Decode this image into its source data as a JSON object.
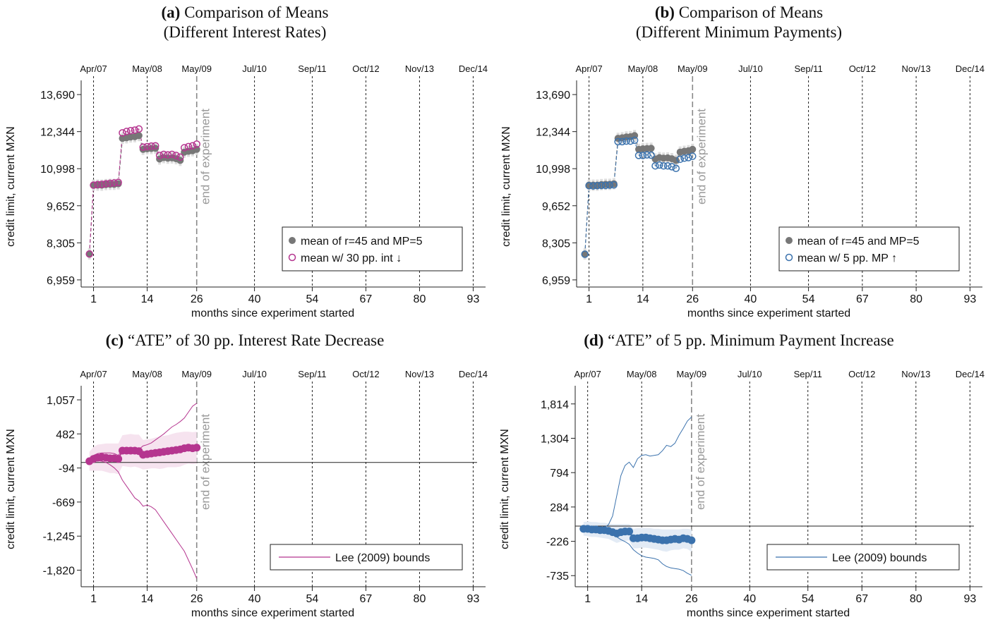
{
  "panels": [
    {
      "id": "a",
      "title": {
        "tag": "(a)",
        "line1": "Comparison of Means",
        "line2": "(Different Interest Rates)"
      },
      "chart_data": {
        "type": "scatter",
        "ylabel": "credit limit, current MXN",
        "xlabel": "months since experiment started",
        "x_ticks": [
          1,
          14,
          26,
          40,
          54,
          67,
          80,
          93
        ],
        "y_ticks": [
          6959,
          8305,
          9652,
          10998,
          12344,
          13690
        ],
        "y_tick_labels": [
          "6,959",
          "8,305",
          "9,652",
          "10,998",
          "12,344",
          "13,690"
        ],
        "top_ticks": [
          "Apr/07",
          "May/08",
          "May/09",
          "Jul/10",
          "Sep/11",
          "Oct/12",
          "Nov/13",
          "Dec/14"
        ],
        "xlim": [
          -2,
          96
        ],
        "ylim": [
          6700,
          14000
        ],
        "annotation": "end of experiment",
        "legend": [
          "mean of r=45 and MP=5",
          "mean w/ 30 pp. int ↓"
        ],
        "legend_position": "right",
        "accent": "#b5358f",
        "series": [
          {
            "name": "mean of r=45 and MP=5",
            "style": "filled-gray",
            "x": [
              0,
              1,
              2,
              3,
              4,
              5,
              6,
              7,
              8,
              9,
              10,
              11,
              12,
              13,
              14,
              15,
              16,
              17,
              18,
              19,
              20,
              21,
              22,
              23,
              24,
              25,
              26
            ],
            "values": [
              7900,
              10400,
              10400,
              10400,
              10420,
              10430,
              10430,
              10450,
              12100,
              12120,
              12150,
              12160,
              12200,
              11700,
              11720,
              11730,
              11740,
              11350,
              11400,
              11380,
              11390,
              11360,
              11300,
              11600,
              11630,
              11650,
              11700
            ]
          },
          {
            "name": "mean w/ 30 pp. int ↓",
            "style": "hollow-accent",
            "x": [
              0,
              1,
              2,
              3,
              4,
              5,
              6,
              7,
              8,
              9,
              10,
              11,
              12,
              13,
              14,
              15,
              16,
              17,
              18,
              19,
              20,
              21,
              22,
              23,
              24,
              25,
              26
            ],
            "values": [
              7900,
              10400,
              10420,
              10430,
              10450,
              10470,
              10480,
              10500,
              12300,
              12350,
              12380,
              12400,
              12440,
              11780,
              11800,
              11820,
              11830,
              11480,
              11520,
              11500,
              11520,
              11480,
              11420,
              11760,
              11800,
              11830,
              11890
            ]
          }
        ]
      }
    },
    {
      "id": "b",
      "title": {
        "tag": "(b)",
        "line1": "Comparison of Means",
        "line2": "(Different Minimum Payments)"
      },
      "chart_data": {
        "type": "scatter",
        "ylabel": "credit limit, current MXN",
        "xlabel": "months since experiment started",
        "x_ticks": [
          1,
          14,
          26,
          40,
          54,
          67,
          80,
          93
        ],
        "y_ticks": [
          6959,
          8305,
          9652,
          10998,
          12344,
          13690
        ],
        "y_tick_labels": [
          "6,959",
          "8,305",
          "9,652",
          "10,998",
          "12,344",
          "13,690"
        ],
        "top_ticks": [
          "Apr/07",
          "May/08",
          "May/09",
          "Jul/10",
          "Sep/11",
          "Oct/12",
          "Nov/13",
          "Dec/14"
        ],
        "xlim": [
          -2,
          96
        ],
        "ylim": [
          6700,
          14000
        ],
        "annotation": "end of experiment",
        "legend": [
          "mean of r=45 and MP=5",
          "mean w/ 5 pp. MP ↑"
        ],
        "legend_position": "right",
        "accent": "#3b72ad",
        "series": [
          {
            "name": "mean of r=45 and MP=5",
            "style": "filled-gray",
            "x": [
              0,
              1,
              2,
              3,
              4,
              5,
              6,
              7,
              8,
              9,
              10,
              11,
              12,
              13,
              14,
              15,
              16,
              17,
              18,
              19,
              20,
              21,
              22,
              23,
              24,
              25,
              26
            ],
            "values": [
              7900,
              10400,
              10400,
              10400,
              10420,
              10430,
              10430,
              10450,
              12100,
              12120,
              12150,
              12160,
              12200,
              11700,
              11720,
              11730,
              11740,
              11350,
              11400,
              11380,
              11390,
              11360,
              11300,
              11600,
              11630,
              11650,
              11700
            ]
          },
          {
            "name": "mean w/ 5 pp. MP ↑",
            "style": "hollow-accent",
            "x": [
              0,
              1,
              2,
              3,
              4,
              5,
              6,
              7,
              8,
              9,
              10,
              11,
              12,
              13,
              14,
              15,
              16,
              17,
              18,
              19,
              20,
              21,
              22,
              23,
              24,
              25,
              26
            ],
            "values": [
              7890,
              10380,
              10370,
              10380,
              10390,
              10390,
              10400,
              10410,
              11980,
              11980,
              12000,
              12000,
              12030,
              11480,
              11480,
              11500,
              11490,
              11100,
              11130,
              11100,
              11100,
              11070,
              11010,
              11340,
              11380,
              11400,
              11450
            ]
          }
        ]
      }
    },
    {
      "id": "c",
      "title": {
        "tag": "(c)",
        "line1": "“ATE” of 30 pp. Interest Rate Decrease",
        "line2": ""
      },
      "chart_data": {
        "type": "scatter",
        "ylabel": "credit limit, current MXN",
        "xlabel": "months since experiment started",
        "x_ticks": [
          1,
          14,
          26,
          40,
          54,
          67,
          80,
          93
        ],
        "y_ticks": [
          -1820,
          -1245,
          -669,
          -94,
          482,
          1057
        ],
        "y_tick_labels": [
          "-1,820",
          "-1,245",
          "-669",
          "-94",
          "482",
          "1,057"
        ],
        "top_ticks": [
          "Apr/07",
          "May/08",
          "May/09",
          "Jul/10",
          "Sep/11",
          "Oct/12",
          "Nov/13",
          "Dec/14"
        ],
        "xlim": [
          -2,
          96
        ],
        "ylim": [
          -2100,
          1200
        ],
        "zero_line": 0,
        "annotation": "end of experiment",
        "legend": [
          "Lee (2009) bounds"
        ],
        "legend_position": "bottom-right",
        "accent": "#b5358f",
        "ci_color": "#f6e3ef",
        "x": [
          0,
          1,
          2,
          3,
          4,
          5,
          6,
          7,
          8,
          9,
          10,
          11,
          12,
          13,
          14,
          15,
          16,
          17,
          18,
          19,
          20,
          21,
          22,
          23,
          24,
          25,
          26
        ],
        "estimate": [
          20,
          60,
          80,
          90,
          80,
          70,
          70,
          60,
          200,
          200,
          200,
          200,
          190,
          130,
          140,
          150,
          160,
          170,
          180,
          190,
          200,
          210,
          220,
          240,
          250,
          240,
          250
        ],
        "ci_upper": [
          180,
          260,
          300,
          310,
          320,
          320,
          320,
          320,
          460,
          470,
          480,
          470,
          470,
          380,
          390,
          400,
          420,
          440,
          450,
          460,
          480,
          500,
          510,
          520,
          520,
          510,
          520
        ],
        "ci_lower": [
          -140,
          -140,
          -140,
          -140,
          -160,
          -180,
          -180,
          -200,
          -60,
          -70,
          -80,
          -70,
          -90,
          -120,
          -110,
          -100,
          -100,
          -110,
          -100,
          -80,
          -80,
          -80,
          -70,
          -40,
          -20,
          -30,
          -20
        ],
        "bound_upper": [
          50,
          120,
          150,
          160,
          160,
          160,
          150,
          120,
          220,
          220,
          220,
          210,
          220,
          280,
          300,
          330,
          380,
          430,
          480,
          540,
          600,
          640,
          690,
          750,
          850,
          950,
          1000
        ],
        "bound_lower": [
          -20,
          20,
          30,
          20,
          0,
          -40,
          -90,
          -160,
          -300,
          -400,
          -500,
          -600,
          -650,
          -740,
          -720,
          -750,
          -800,
          -900,
          -1000,
          -1100,
          -1200,
          -1300,
          -1400,
          -1500,
          -1650,
          -1800,
          -1960
        ]
      }
    },
    {
      "id": "d",
      "title": {
        "tag": "(d)",
        "line1": "“ATE” of 5 pp. Minimum Payment Increase",
        "line2": ""
      },
      "chart_data": {
        "type": "scatter",
        "ylabel": "credit limit, current MXN",
        "xlabel": "months since experiment started",
        "x_ticks": [
          1,
          14,
          26,
          40,
          54,
          67,
          80,
          93
        ],
        "y_ticks": [
          -735,
          -226,
          284,
          794,
          1304,
          1814
        ],
        "y_tick_labels": [
          "-735",
          "-226",
          "284",
          "794",
          "1,304",
          "1,814"
        ],
        "top_ticks": [
          "Apr/07",
          "May/08",
          "May/09",
          "Jul/10",
          "Sep/11",
          "Oct/12",
          "Nov/13",
          "Dec/14"
        ],
        "xlim": [
          -2,
          96
        ],
        "ylim": [
          -900,
          2000
        ],
        "zero_line": 0,
        "annotation": "end of experiment",
        "legend": [
          "Lee (2009) bounds"
        ],
        "legend_position": "bottom-right",
        "accent": "#3b72ad",
        "ci_color": "#e3ebf5",
        "x": [
          0,
          1,
          2,
          3,
          4,
          5,
          6,
          7,
          8,
          9,
          10,
          11,
          12,
          13,
          14,
          15,
          16,
          17,
          18,
          19,
          20,
          21,
          22,
          23,
          24,
          25,
          26
        ],
        "estimate": [
          -40,
          -40,
          -50,
          -50,
          -60,
          -60,
          -70,
          -90,
          -110,
          -90,
          -80,
          -80,
          -180,
          -180,
          -170,
          -170,
          -180,
          -190,
          -200,
          -210,
          -210,
          -200,
          -190,
          -200,
          -180,
          -190,
          -210
        ],
        "ci_upper": [
          60,
          70,
          60,
          60,
          50,
          50,
          40,
          30,
          30,
          30,
          30,
          30,
          -40,
          -30,
          -30,
          -30,
          -30,
          -40,
          -40,
          -50,
          -50,
          -50,
          -50,
          -50,
          -40,
          -40,
          -50
        ],
        "ci_lower": [
          -140,
          -150,
          -160,
          -160,
          -170,
          -180,
          -190,
          -220,
          -250,
          -230,
          -220,
          -210,
          -330,
          -330,
          -320,
          -320,
          -330,
          -340,
          -350,
          -370,
          -380,
          -360,
          -350,
          -350,
          -330,
          -340,
          -380
        ],
        "bound_upper": [
          -30,
          -20,
          -20,
          -30,
          -40,
          -20,
          20,
          150,
          450,
          750,
          900,
          950,
          870,
          1000,
          1050,
          1060,
          1040,
          1050,
          1060,
          1120,
          1200,
          1180,
          1230,
          1350,
          1450,
          1560,
          1620
        ],
        "bound_lower": [
          -50,
          -60,
          -70,
          -70,
          -80,
          -90,
          -100,
          -130,
          -160,
          -200,
          -230,
          -270,
          -350,
          -400,
          -440,
          -460,
          -470,
          -480,
          -500,
          -560,
          -600,
          -620,
          -630,
          -640,
          -660,
          -700,
          -730
        ]
      }
    }
  ]
}
